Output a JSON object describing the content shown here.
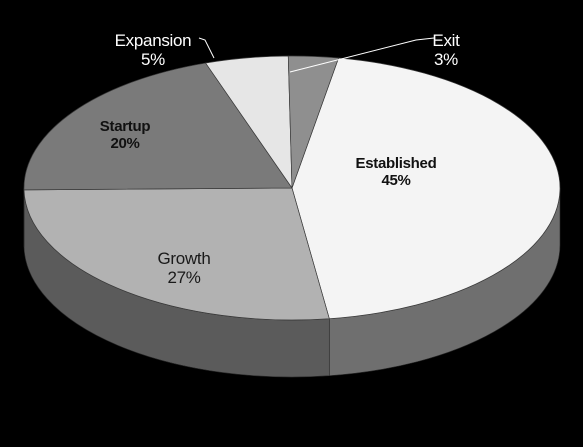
{
  "chart_data": {
    "type": "pie",
    "style": "3d",
    "title": "",
    "slices": [
      {
        "label": "Established",
        "value": 45,
        "value_label": "45%",
        "color": "#f4f4f4",
        "side_color": "#6f6f6f",
        "label_color": "#111111"
      },
      {
        "label": "Growth",
        "value": 27,
        "value_label": "27%",
        "color": "#b2b2b2",
        "side_color": "#5b5b5b",
        "label_color": "#1a1a1a"
      },
      {
        "label": "Startup",
        "value": 20,
        "value_label": "20%",
        "color": "#7a7a7a",
        "side_color": "#474747",
        "label_color": "#111111"
      },
      {
        "label": "Expansion",
        "value": 5,
        "value_label": "5%",
        "color": "#e6e6e6",
        "side_color": "#5e5e5e",
        "label_color": "#ffffff"
      },
      {
        "label": "Exit",
        "value": 3,
        "value_label": "3%",
        "color": "#8f8f8f",
        "side_color": "#4a4a4a",
        "label_color": "#ffffff"
      }
    ],
    "legend": "none",
    "background": "#000000"
  }
}
